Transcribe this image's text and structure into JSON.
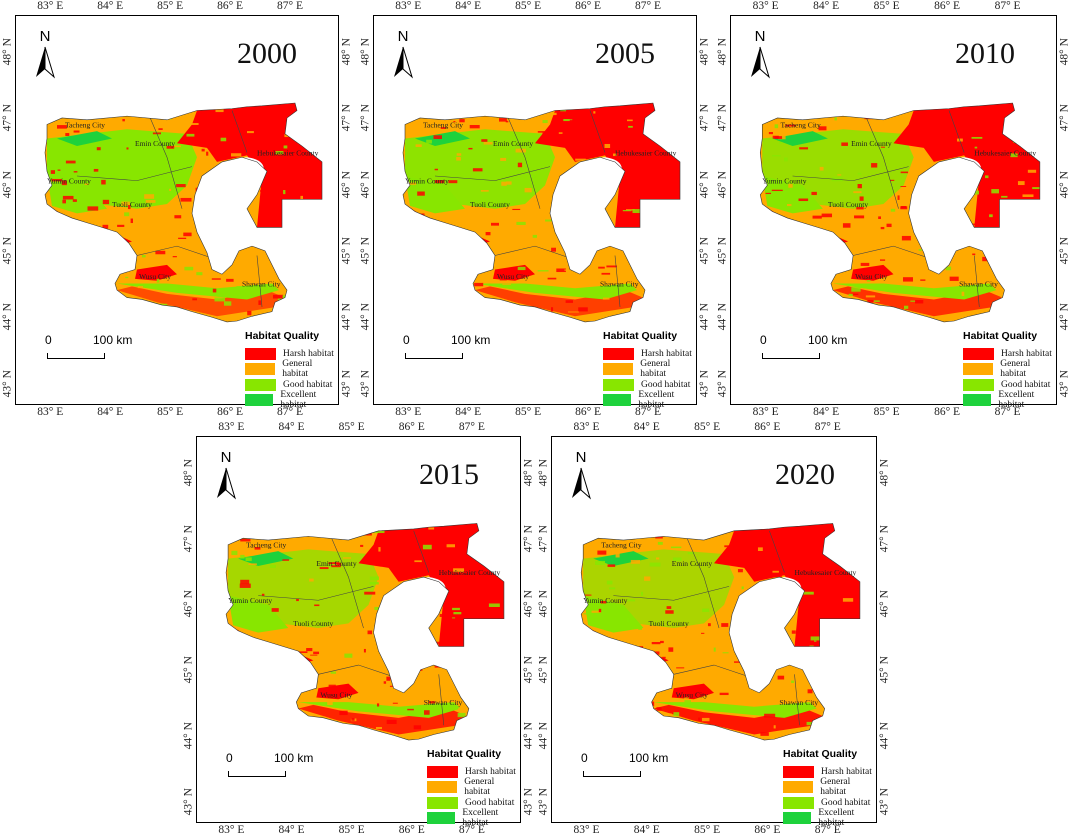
{
  "longitude_ticks": [
    "83° E",
    "84° E",
    "85° E",
    "86° E",
    "87° E"
  ],
  "latitude_ticks": [
    "48° N",
    "47° N",
    "46° N",
    "45° N",
    "44° N",
    "43° N"
  ],
  "north_label": "N",
  "scale_bar": {
    "zero": "0",
    "distance": "100 km"
  },
  "legend": {
    "title": "Habitat Quality",
    "items": [
      {
        "label": "Harsh habitat",
        "color": "#ff0000"
      },
      {
        "label": "General habitat",
        "color": "#ffaa00"
      },
      {
        "label": "Good habitat",
        "color": "#88e600"
      },
      {
        "label": "Excellent habitat",
        "color": "#1ed23c"
      }
    ]
  },
  "places": [
    "Tacheng City",
    "Emin County",
    "Hebukesaier County",
    "Yumin County",
    "Tuoli County",
    "Wusu City",
    "Shawan City"
  ],
  "panels": [
    {
      "year": "2000"
    },
    {
      "year": "2005"
    },
    {
      "year": "2010"
    },
    {
      "year": "2015"
    },
    {
      "year": "2020"
    }
  ]
}
